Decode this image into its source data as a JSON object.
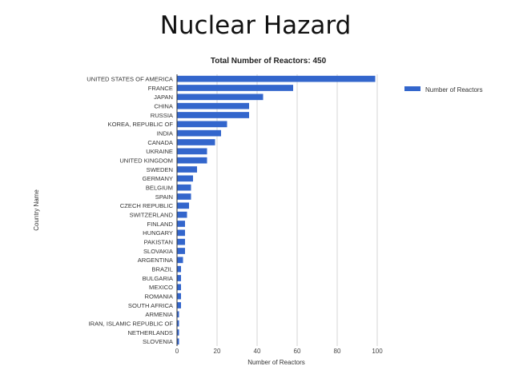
{
  "slide": {
    "title": "Nuclear Hazard"
  },
  "chart_data": {
    "type": "bar",
    "orientation": "horizontal",
    "title": "Total Number of Reactors: 450",
    "xlabel": "Number of Reactors",
    "ylabel": "Country Name",
    "xlim": [
      0,
      100
    ],
    "xticks": [
      0,
      20,
      40,
      60,
      80,
      100
    ],
    "grid": true,
    "legend_position": "right",
    "bar_color": "#3366cc",
    "categories": [
      "UNITED STATES OF AMERICA",
      "FRANCE",
      "JAPAN",
      "CHINA",
      "RUSSIA",
      "KOREA, REPUBLIC OF",
      "INDIA",
      "CANADA",
      "UKRAINE",
      "UNITED KINGDOM",
      "SWEDEN",
      "GERMANY",
      "BELGIUM",
      "SPAIN",
      "CZECH REPUBLIC",
      "SWITZERLAND",
      "FINLAND",
      "HUNGARY",
      "PAKISTAN",
      "SLOVAKIA",
      "ARGENTINA",
      "BRAZIL",
      "BULGARIA",
      "MEXICO",
      "ROMANIA",
      "SOUTH AFRICA",
      "ARMENIA",
      "IRAN, ISLAMIC REPUBLIC OF",
      "NETHERLANDS",
      "SLOVENIA"
    ],
    "series": [
      {
        "name": "Number of Reactors",
        "values": [
          99,
          58,
          43,
          36,
          36,
          25,
          22,
          19,
          15,
          15,
          10,
          8,
          7,
          7,
          6,
          5,
          4,
          4,
          4,
          4,
          3,
          2,
          2,
          2,
          2,
          2,
          1,
          1,
          1,
          1
        ]
      }
    ]
  }
}
